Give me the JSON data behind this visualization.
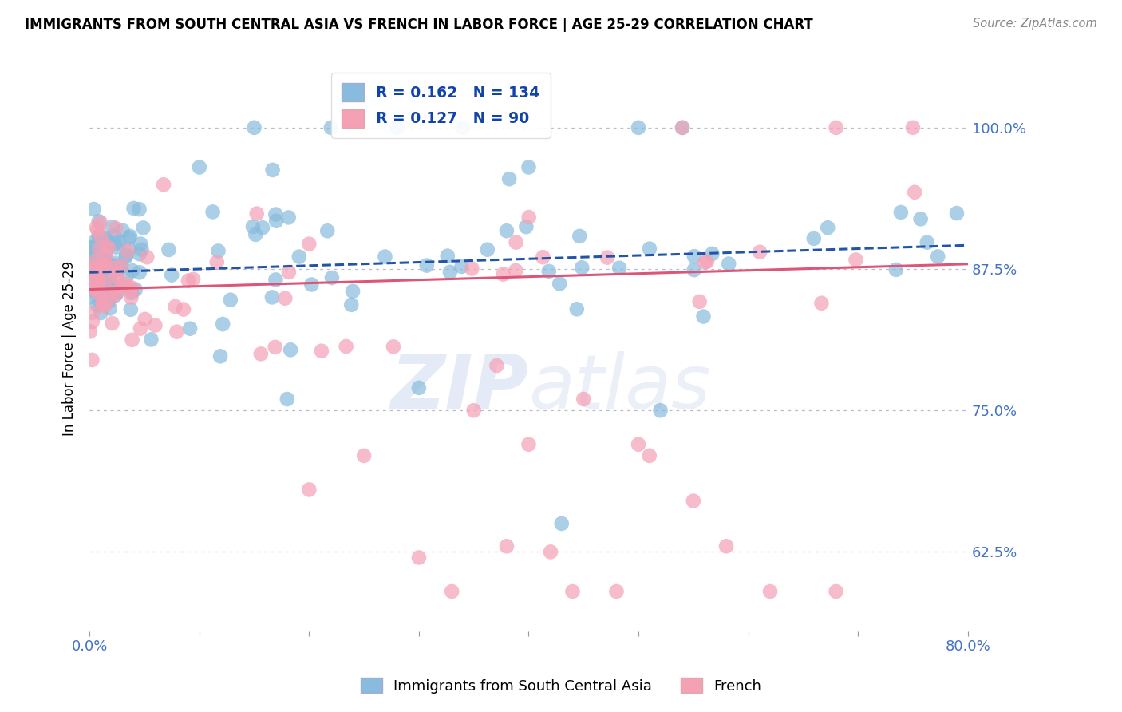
{
  "title": "IMMIGRANTS FROM SOUTH CENTRAL ASIA VS FRENCH IN LABOR FORCE | AGE 25-29 CORRELATION CHART",
  "source": "Source: ZipAtlas.com",
  "ylabel": "In Labor Force | Age 25-29",
  "yticks": [
    0.625,
    0.75,
    0.875,
    1.0
  ],
  "ytick_labels": [
    "62.5%",
    "75.0%",
    "87.5%",
    "100.0%"
  ],
  "xmin": 0.0,
  "xmax": 0.8,
  "ymin": 0.555,
  "ymax": 1.055,
  "blue_R": 0.162,
  "blue_N": 134,
  "pink_R": 0.127,
  "pink_N": 90,
  "blue_color": "#88bbdd",
  "pink_color": "#f4a0b5",
  "blue_line_color": "#2255aa",
  "pink_line_color": "#dd5577",
  "blue_legend_label": "Immigrants from South Central Asia",
  "pink_legend_label": "French",
  "watermark": "ZIPatlas"
}
